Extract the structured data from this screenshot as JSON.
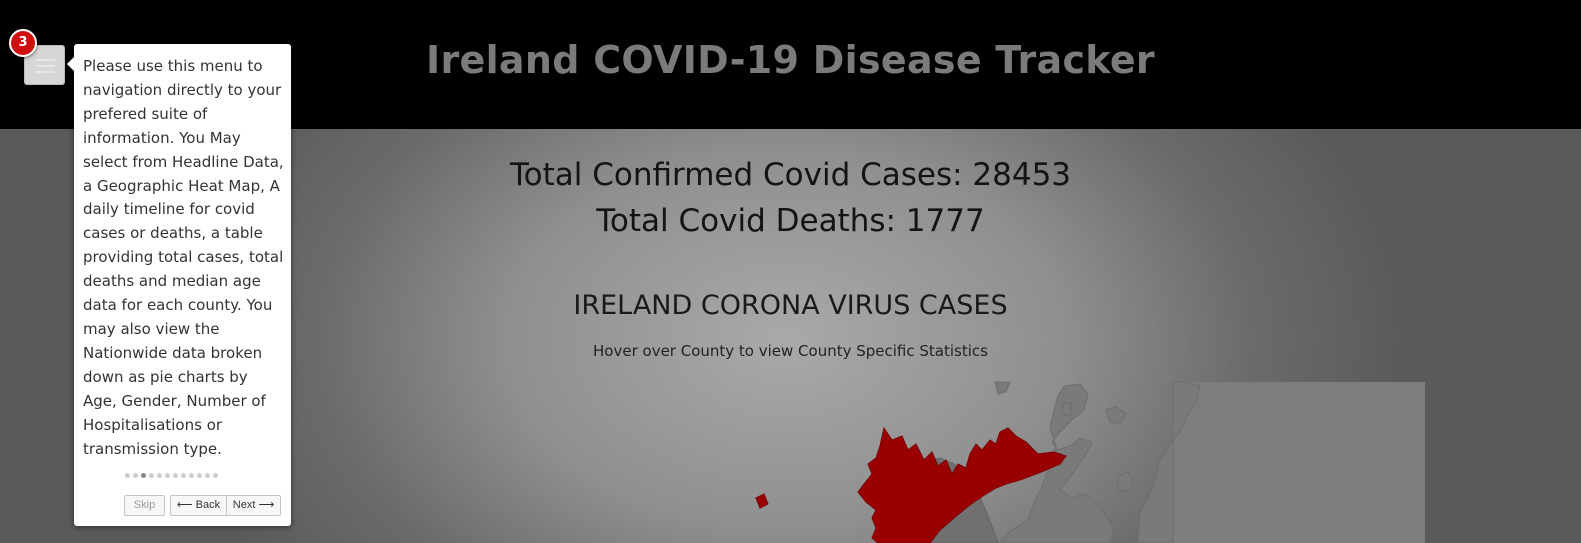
{
  "header": {
    "title": "Ireland COVID-19 Disease Tracker"
  },
  "menu": {
    "icon": "hamburger-icon"
  },
  "tour": {
    "step": "3",
    "text": "Please use this menu to navigation directly to your prefered suite of information. You May select from Headline Data, a Geographic Heat Map, A daily timeline for covid cases or deaths, a table providing total cases, total deaths and median age data for each county. You may also view the Nationwide data broken down as pie charts by Age, Gender, Number of Hospitalisations or transmission type.",
    "total_steps": 12,
    "current_step_index": 2,
    "skip_label": "Skip",
    "back_label": "⟵ Back",
    "next_label": "Next ⟶"
  },
  "stats": {
    "cases": "Total Confirmed Covid Cases: 28453",
    "deaths": "Total Covid Deaths: 1777"
  },
  "map_section": {
    "title": "IRELAND CORONA VIRUS CASES",
    "subtitle": "Hover over County to view County Specific Statistics",
    "highlight_color": "#9a0000"
  }
}
